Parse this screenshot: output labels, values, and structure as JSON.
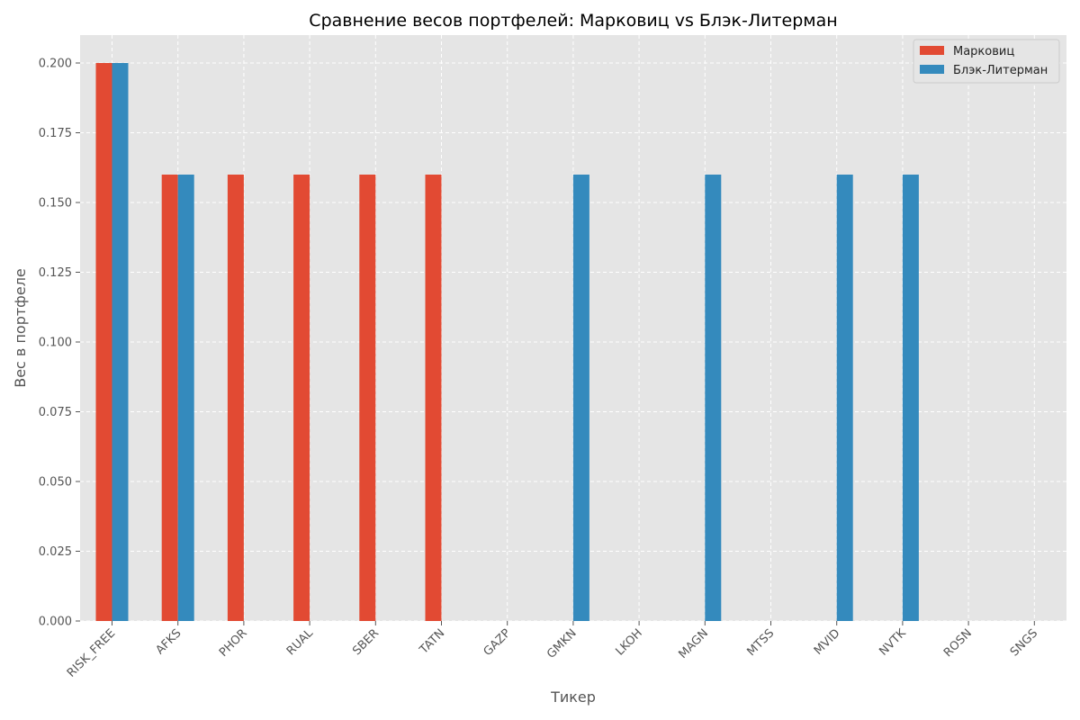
{
  "chart_data": {
    "type": "bar",
    "title": "Сравнение весов портфелей: Марковиц vs Блэк-Литерман",
    "xlabel": "Тикер",
    "ylabel": "Вес в портфеле",
    "categories": [
      "RISK_FREE",
      "AFKS",
      "PHOR",
      "RUAL",
      "SBER",
      "TATN",
      "GAZP",
      "GMKN",
      "LKOH",
      "MAGN",
      "MTSS",
      "MVID",
      "NVTK",
      "ROSN",
      "SNGS"
    ],
    "series": [
      {
        "name": "Марковиц",
        "color": "#E24A33",
        "values": [
          0.2,
          0.16,
          0.16,
          0.16,
          0.16,
          0.16,
          0,
          0,
          0,
          0,
          0,
          0,
          0,
          0,
          0
        ]
      },
      {
        "name": "Блэк-Литерман",
        "color": "#348ABD",
        "values": [
          0.2,
          0.16,
          0,
          0,
          0,
          0,
          0,
          0.16,
          0,
          0.16,
          0,
          0.16,
          0.16,
          0,
          0
        ]
      }
    ],
    "ylim": [
      0,
      0.21
    ],
    "yticks": [
      "0.000",
      "0.025",
      "0.050",
      "0.075",
      "0.100",
      "0.125",
      "0.150",
      "0.175",
      "0.200"
    ],
    "grid": true,
    "legend_position": "top-right",
    "plot_background": "#E5E5E5",
    "grid_color": "#FFFFFF"
  }
}
